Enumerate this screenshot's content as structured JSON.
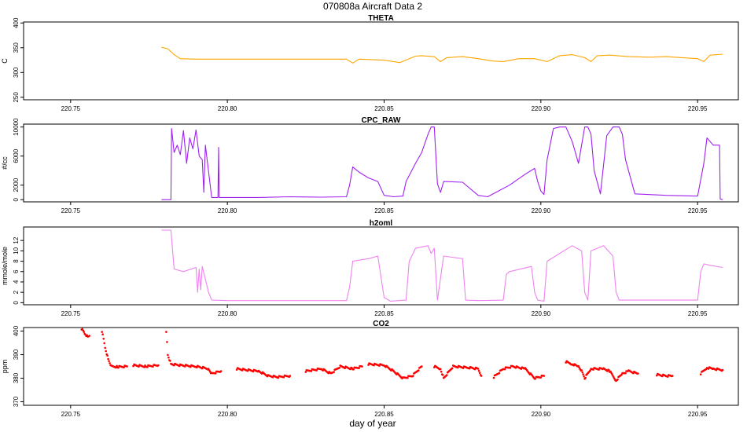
{
  "figure": {
    "title": "070808a   Aircraft Data 2",
    "xlabel": "day of year"
  },
  "chart_data": [
    {
      "type": "line",
      "title": "THETA",
      "ylabel": "C",
      "color": "#FFA500",
      "xlim": [
        220.735,
        220.963
      ],
      "ylim": [
        245,
        402
      ],
      "xticks": [
        "220.75",
        "220.80",
        "220.85",
        "220.90",
        "220.95"
      ],
      "xtick_values": [
        220.75,
        220.8,
        220.85,
        220.9,
        220.95
      ],
      "yticks": [
        "250",
        "300",
        "350",
        "400"
      ],
      "ytick_values": [
        250,
        300,
        350,
        400
      ],
      "x": [
        220.779,
        220.781,
        220.783,
        220.785,
        220.79,
        220.8,
        220.81,
        220.82,
        220.83,
        220.838,
        220.84,
        220.842,
        220.85,
        220.855,
        220.86,
        220.862,
        220.866,
        220.868,
        220.87,
        220.875,
        220.88,
        220.885,
        220.888,
        220.893,
        220.898,
        220.902,
        220.906,
        220.91,
        220.914,
        220.916,
        220.918,
        220.922,
        220.928,
        220.935,
        220.94,
        220.945,
        220.95,
        220.952,
        220.954,
        220.958
      ],
      "y": [
        351,
        348,
        336,
        328,
        327,
        327,
        327,
        327,
        327,
        327,
        319,
        327,
        325,
        320,
        333,
        334,
        332,
        322,
        330,
        332,
        328,
        323,
        322,
        328,
        328,
        322,
        334,
        336,
        330,
        322,
        334,
        335,
        332,
        331,
        332,
        330,
        328,
        322,
        335,
        337
      ]
    },
    {
      "type": "line",
      "title": "CPC_RAW",
      "ylabel": "#/cc",
      "color": "#A020F0",
      "xlim": [
        220.735,
        220.963
      ],
      "ylim": [
        -300,
        10400
      ],
      "xticks": [
        "220.75",
        "220.80",
        "220.85",
        "220.90",
        "220.95"
      ],
      "xtick_values": [
        220.75,
        220.8,
        220.85,
        220.9,
        220.95
      ],
      "yticks": [
        "0",
        "2000",
        "6000",
        "10000"
      ],
      "ytick_values": [
        0,
        2000,
        6000,
        10000
      ],
      "x": [
        220.779,
        220.782,
        220.7822,
        220.783,
        220.784,
        220.785,
        220.786,
        220.787,
        220.788,
        220.789,
        220.79,
        220.791,
        220.792,
        220.7925,
        220.793,
        220.795,
        220.797,
        220.7972,
        220.7974,
        220.8,
        220.81,
        220.82,
        220.83,
        220.838,
        220.839,
        220.84,
        220.842,
        220.845,
        220.848,
        220.85,
        220.853,
        220.856,
        220.857,
        220.86,
        220.862,
        220.864,
        220.865,
        220.866,
        220.867,
        220.868,
        220.869,
        220.875,
        220.88,
        220.883,
        220.89,
        220.895,
        220.898,
        220.899,
        220.9,
        220.901,
        220.902,
        220.904,
        220.906,
        220.908,
        220.91,
        220.912,
        220.914,
        220.915,
        220.916,
        220.917,
        220.919,
        220.921,
        220.923,
        220.925,
        220.926,
        220.927,
        220.93,
        220.94,
        220.949,
        220.95,
        220.952,
        220.953,
        220.955,
        220.957,
        220.9572,
        220.958
      ],
      "y": [
        0,
        0,
        9800,
        6500,
        7500,
        6200,
        9500,
        5000,
        8500,
        7000,
        9600,
        6000,
        5500,
        1000,
        7500,
        300,
        300,
        7200,
        300,
        300,
        300,
        400,
        350,
        400,
        2000,
        4500,
        3800,
        3000,
        2500,
        600,
        400,
        500,
        2500,
        5000,
        6500,
        9000,
        10000,
        10000,
        2200,
        1000,
        2500,
        2400,
        600,
        400,
        2000,
        3500,
        4300,
        2500,
        1200,
        700,
        5500,
        9800,
        10000,
        10000,
        8000,
        5000,
        10000,
        10000,
        9000,
        4000,
        800,
        8800,
        10000,
        10000,
        9000,
        5500,
        800,
        600,
        500,
        500,
        5000,
        8500,
        7500,
        7500,
        100,
        0
      ]
    },
    {
      "type": "line",
      "title": "h2oml",
      "ylabel": "mmole/mole",
      "color": "#EE82EE",
      "xlim": [
        220.735,
        220.963
      ],
      "ylim": [
        -0.4,
        14.6
      ],
      "xticks": [
        "220.75",
        "220.80",
        "220.85",
        "220.90",
        "220.95"
      ],
      "xtick_values": [
        220.75,
        220.8,
        220.85,
        220.9,
        220.95
      ],
      "yticks": [
        "0",
        "2",
        "4",
        "6",
        "8",
        "10",
        "12"
      ],
      "ytick_values": [
        0,
        2,
        4,
        6,
        8,
        10,
        12
      ],
      "x": [
        220.779,
        220.782,
        220.783,
        220.786,
        220.79,
        220.7905,
        220.791,
        220.7915,
        220.792,
        220.794,
        220.795,
        220.8,
        220.82,
        220.838,
        220.839,
        220.84,
        220.845,
        220.848,
        220.849,
        220.85,
        220.852,
        220.857,
        220.858,
        220.86,
        220.864,
        220.865,
        220.866,
        220.867,
        220.869,
        220.875,
        220.876,
        220.88,
        220.888,
        220.889,
        220.89,
        220.897,
        220.898,
        220.899,
        220.901,
        220.902,
        220.91,
        220.913,
        220.914,
        220.915,
        220.916,
        220.92,
        220.923,
        220.924,
        220.925,
        220.93,
        220.95,
        220.951,
        220.952,
        220.954,
        220.958
      ],
      "y": [
        14,
        14,
        6.5,
        6,
        6.8,
        2,
        6.5,
        2.5,
        7,
        2,
        0.5,
        0.4,
        0.4,
        0.4,
        3,
        8,
        8.5,
        9,
        5,
        1,
        0.3,
        0.5,
        8,
        10.5,
        11,
        9.5,
        10.5,
        0.5,
        9,
        8.5,
        0.5,
        0.4,
        0.5,
        5.5,
        6,
        7,
        2,
        0.5,
        0.3,
        8,
        11,
        10,
        2,
        0.5,
        10,
        11,
        9,
        2,
        0.5,
        0.5,
        0.5,
        6,
        7.5,
        7.2,
        6.8
      ]
    },
    {
      "type": "scatter",
      "title": "CO2",
      "ylabel": "ppm",
      "color": "#FF0000",
      "xlim": [
        220.735,
        220.963
      ],
      "ylim": [
        368.5,
        401.5
      ],
      "xticks": [
        "220.75",
        "220.80",
        "220.85",
        "220.90",
        "220.95"
      ],
      "xtick_values": [
        220.75,
        220.8,
        220.85,
        220.9,
        220.95
      ],
      "yticks": [
        "370",
        "380",
        "390",
        "400"
      ],
      "ytick_values": [
        370,
        380,
        390,
        400
      ],
      "segments": [
        {
          "x": [
            220.7535,
            220.7545,
            220.7555,
            220.756
          ],
          "y": [
            401,
            399,
            397.5,
            398
          ]
        },
        {
          "x": [
            220.76,
            220.761,
            220.762,
            220.763,
            220.765,
            220.768
          ],
          "y": [
            400,
            393,
            388,
            385,
            384.8,
            385
          ]
        },
        {
          "x": [
            220.77,
            220.774,
            220.778
          ],
          "y": [
            385.5,
            385,
            385.5
          ]
        },
        {
          "x": [
            220.7805,
            220.781,
            220.782,
            220.785,
            220.79,
            220.794,
            220.795,
            220.798
          ],
          "y": [
            400,
            390,
            386,
            385.5,
            385,
            384,
            382,
            383
          ]
        },
        {
          "x": [
            220.803,
            220.806,
            220.81,
            220.813,
            220.816,
            220.82
          ],
          "y": [
            384,
            383.5,
            383,
            381,
            380.5,
            381
          ]
        },
        {
          "x": [
            220.825,
            220.83,
            220.833,
            220.836,
            220.84,
            220.843
          ],
          "y": [
            383,
            384,
            382,
            385,
            384,
            385
          ]
        },
        {
          "x": [
            220.845,
            220.85,
            220.853,
            220.856,
            220.859,
            220.862
          ],
          "y": [
            386,
            385.5,
            383,
            380,
            381,
            385
          ]
        },
        {
          "x": [
            220.866,
            220.868,
            220.869,
            220.872,
            220.877,
            220.88,
            220.881
          ],
          "y": [
            385,
            384,
            380,
            385,
            384.5,
            384,
            381
          ]
        },
        {
          "x": [
            220.885,
            220.888,
            220.891,
            220.895,
            220.898,
            220.901
          ],
          "y": [
            380.5,
            384,
            385,
            384,
            380,
            381
          ]
        },
        {
          "x": [
            220.908,
            220.91,
            220.912,
            220.913,
            220.914,
            220.916,
            220.92,
            220.922,
            220.924,
            220.926,
            220.928,
            220.931
          ],
          "y": [
            387,
            386,
            385,
            383,
            380,
            384,
            384,
            383,
            379,
            382,
            383,
            382
          ]
        },
        {
          "x": [
            220.937,
            220.94,
            220.942
          ],
          "y": [
            381.5,
            381,
            381
          ]
        },
        {
          "x": [
            220.951,
            220.953,
            220.955,
            220.958
          ],
          "y": [
            382,
            384.5,
            384,
            383.5
          ]
        }
      ]
    }
  ]
}
